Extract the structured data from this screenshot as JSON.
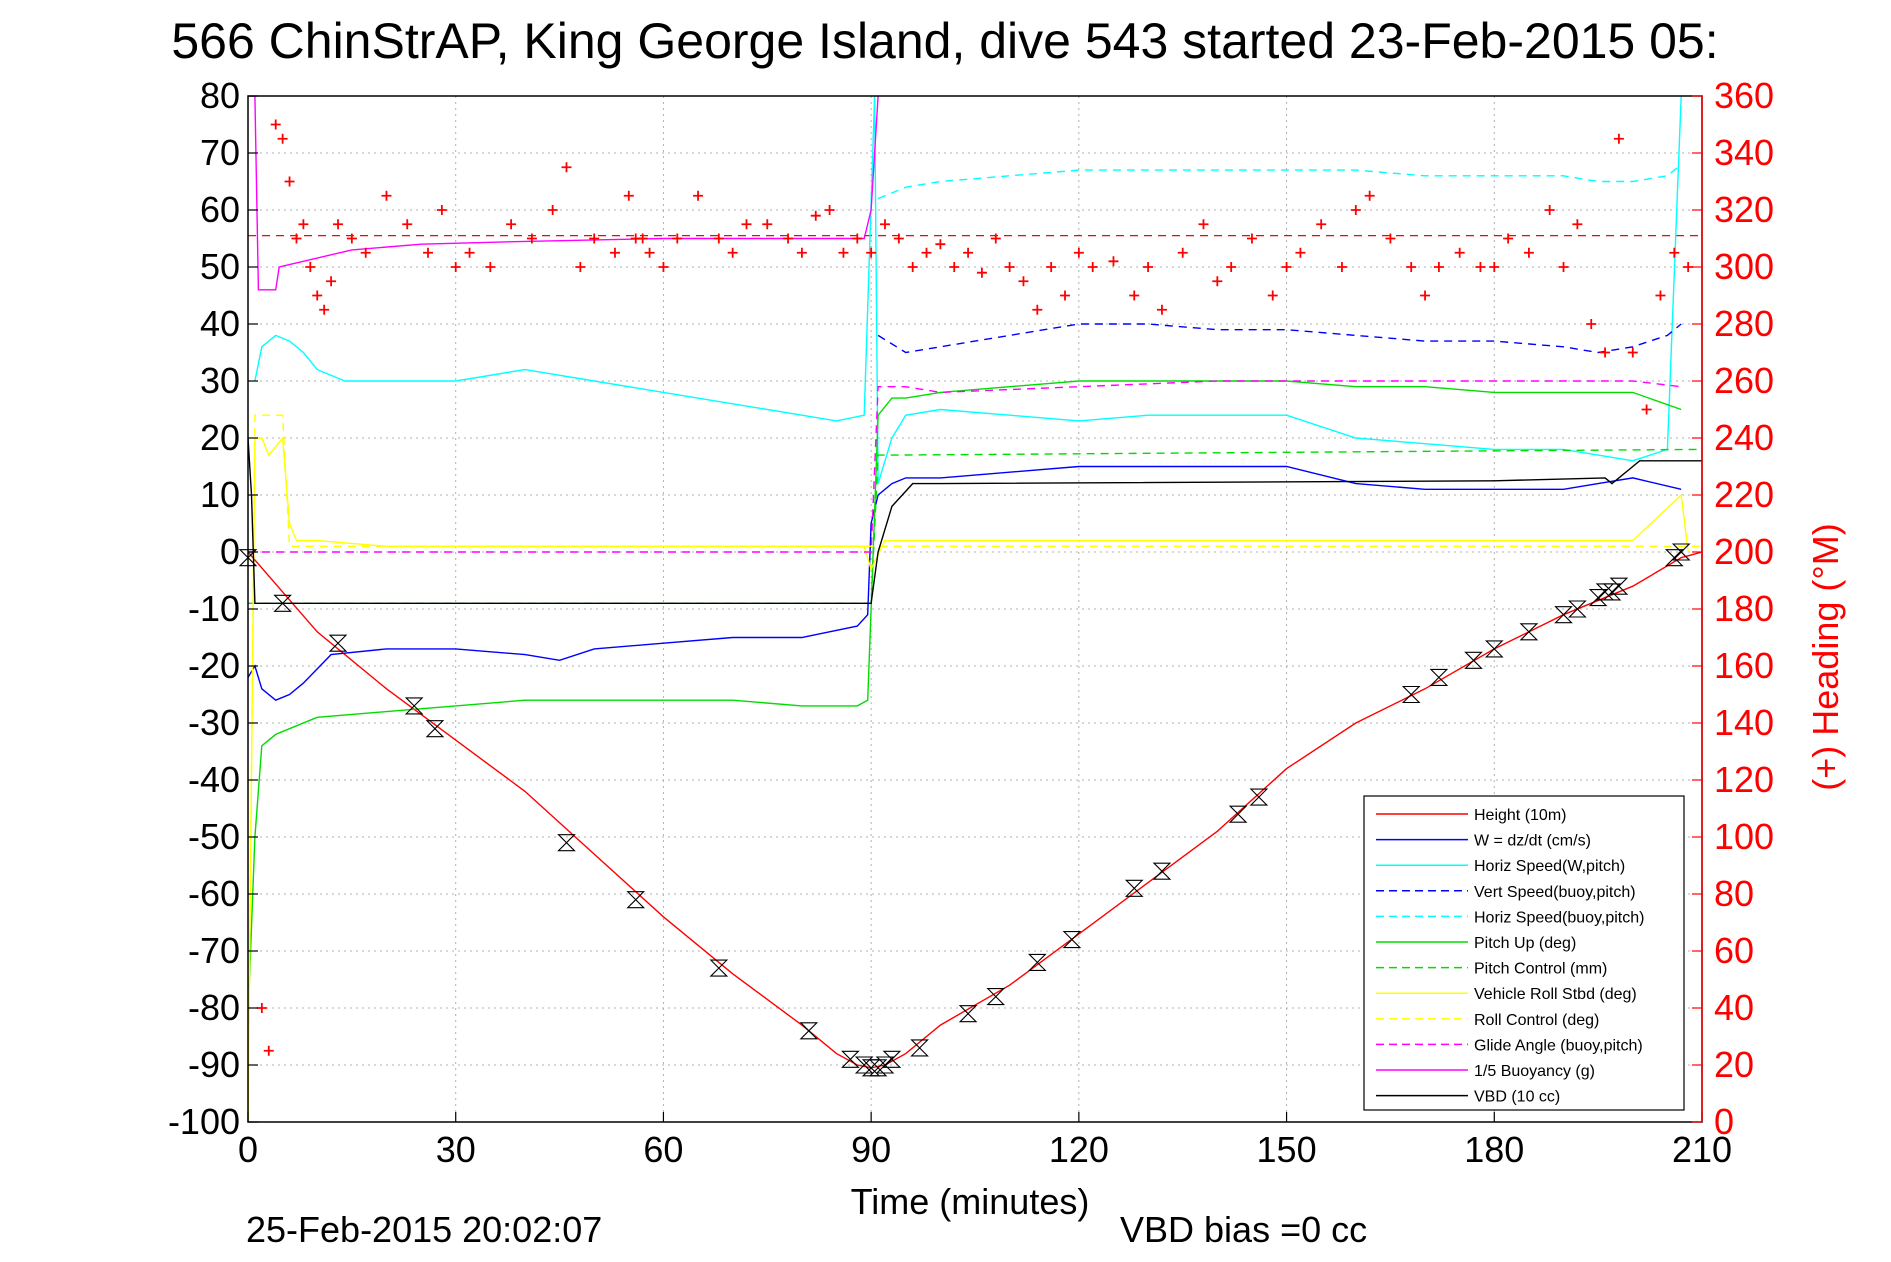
{
  "chart_data": {
    "type": "line",
    "title": "566 ChinStrAP, King George Island, dive 543 started 23-Feb-2015 05:",
    "xlabel": "Time (minutes)",
    "ylabel_right": "(+) Heading (°M)",
    "xlim": [
      0,
      210
    ],
    "ylim": [
      -100,
      80
    ],
    "ylim_right": [
      0,
      360
    ],
    "x_ticks": [
      "0",
      "30",
      "60",
      "90",
      "120",
      "150",
      "180",
      "210"
    ],
    "y_ticks": [
      "80",
      "70",
      "60",
      "50",
      "40",
      "30",
      "20",
      "10",
      "0",
      "-10",
      "-20",
      "-30",
      "-40",
      "-50",
      "-60",
      "-70",
      "-80",
      "-90",
      "-100"
    ],
    "y_ticks_right": [
      "360",
      "340",
      "320",
      "300",
      "280",
      "260",
      "240",
      "220",
      "200",
      "180",
      "160",
      "140",
      "120",
      "100",
      "80",
      "60",
      "40",
      "20",
      "0"
    ],
    "grid": true,
    "legend_position": "bottom-right",
    "timestamp": "25-Feb-2015 20:02:07",
    "vbd_bias": "VBD bias =0 cc",
    "legend": [
      {
        "label": "Height (10m)",
        "color": "#ff0000",
        "dash": "solid"
      },
      {
        "label": "W = dz/dt (cm/s)",
        "color": "#0000ff",
        "dash": "solid"
      },
      {
        "label": "Horiz Speed(W,pitch)",
        "color": "#00ffff",
        "dash": "solid"
      },
      {
        "label": "Vert Speed(buoy,pitch)",
        "color": "#0000ff",
        "dash": "dashed"
      },
      {
        "label": "Horiz Speed(buoy,pitch)",
        "color": "#00ffff",
        "dash": "dashed"
      },
      {
        "label": "Pitch Up (deg)",
        "color": "#00dd00",
        "dash": "solid"
      },
      {
        "label": "Pitch Control (mm)",
        "color": "#00dd00",
        "dash": "dashed"
      },
      {
        "label": "Vehicle Roll Stbd (deg)",
        "color": "#ffff00",
        "dash": "solid"
      },
      {
        "label": "Roll Control (deg)",
        "color": "#ffff00",
        "dash": "dashed"
      },
      {
        "label": "Glide Angle (buoy,pitch)",
        "color": "#ff00ff",
        "dash": "dashed"
      },
      {
        "label": "1/5 Buoyancy (g)",
        "color": "#ff00ff",
        "dash": "solid"
      },
      {
        "label": "VBD (10 cc)",
        "color": "#000000",
        "dash": "solid"
      }
    ],
    "series": [
      {
        "name": "Height (10m)",
        "color": "#ff0000",
        "dash": "solid",
        "x": [
          0,
          5,
          10,
          20,
          30,
          40,
          50,
          60,
          70,
          80,
          85,
          88,
          90,
          92,
          95,
          100,
          110,
          120,
          130,
          140,
          150,
          160,
          170,
          180,
          190,
          200,
          207,
          210
        ],
        "y": [
          0,
          -7,
          -14,
          -24,
          -33,
          -42,
          -53,
          -64,
          -74,
          -83,
          -88,
          -90,
          -90.5,
          -90,
          -88,
          -83,
          -76,
          -67,
          -58,
          -49,
          -38,
          -30,
          -24,
          -17,
          -11,
          -6,
          -1,
          0
        ]
      },
      {
        "name": "W = dz/dt (cm/s)",
        "color": "#0000ff",
        "dash": "solid",
        "x": [
          0,
          1,
          2,
          4,
          6,
          8,
          12,
          20,
          30,
          40,
          45,
          50,
          60,
          70,
          80,
          88,
          89.5,
          90,
          91,
          93,
          95,
          100,
          110,
          120,
          130,
          140,
          150,
          160,
          170,
          180,
          190,
          195,
          200,
          207
        ],
        "y": [
          -22,
          -20,
          -24,
          -26,
          -25,
          -23,
          -18,
          -17,
          -17,
          -18,
          -19,
          -17,
          -16,
          -15,
          -15,
          -13,
          -11,
          5,
          10,
          12,
          13,
          13,
          14,
          15,
          15,
          15,
          15,
          12,
          11,
          11,
          11,
          12,
          13,
          11
        ]
      },
      {
        "name": "Horiz Speed(W,pitch)",
        "color": "#00ffff",
        "dash": "solid",
        "x": [
          1,
          2,
          4,
          6,
          8,
          10,
          14,
          20,
          30,
          40,
          50,
          60,
          70,
          80,
          85,
          89,
          90.5,
          91,
          93,
          95,
          100,
          110,
          120,
          130,
          140,
          150,
          160,
          170,
          180,
          190,
          195,
          200,
          205,
          207
        ],
        "y": [
          30,
          36,
          38,
          37,
          35,
          32,
          30,
          30,
          30,
          32,
          30,
          28,
          26,
          24,
          23,
          24,
          80,
          12,
          20,
          24,
          25,
          24,
          23,
          24,
          24,
          24,
          20,
          19,
          18,
          18,
          17,
          16,
          18,
          80
        ]
      },
      {
        "name": "Vert Speed(buoy,pitch)",
        "color": "#0000ff",
        "dash": "dashed",
        "x": [
          91,
          95,
          100,
          110,
          120,
          130,
          140,
          150,
          160,
          170,
          180,
          190,
          195,
          200,
          205,
          207
        ],
        "y": [
          38,
          35,
          36,
          38,
          40,
          40,
          39,
          39,
          38,
          37,
          37,
          36,
          35,
          36,
          38,
          40
        ]
      },
      {
        "name": "Horiz Speed(buoy,pitch)",
        "color": "#00ffff",
        "dash": "dashed",
        "x": [
          91,
          95,
          100,
          110,
          120,
          130,
          140,
          150,
          160,
          170,
          180,
          190,
          195,
          200,
          205,
          207
        ],
        "y": [
          62,
          64,
          65,
          66,
          67,
          67,
          67,
          67,
          67,
          66,
          66,
          66,
          65,
          65,
          66,
          68
        ]
      },
      {
        "name": "Pitch Up (deg)",
        "color": "#00dd00",
        "dash": "solid",
        "x": [
          0,
          1,
          2,
          4,
          6,
          10,
          20,
          30,
          40,
          50,
          60,
          70,
          80,
          88,
          89.5,
          90,
          91,
          93,
          95,
          100,
          110,
          120,
          130,
          140,
          150,
          160,
          170,
          180,
          190,
          195,
          200,
          207
        ],
        "y": [
          -82,
          -50,
          -34,
          -32,
          -31,
          -29,
          -28,
          -27,
          -26,
          -26,
          -26,
          -26,
          -27,
          -27,
          -26,
          -10,
          24,
          27,
          27,
          28,
          29,
          30,
          30,
          30,
          30,
          29,
          29,
          28,
          28,
          28,
          28,
          25
        ]
      },
      {
        "name": "Pitch Control (mm)",
        "color": "#00dd00",
        "dash": "dashed",
        "x": [
          0,
          2,
          90,
          91,
          93,
          210
        ],
        "y": [
          -9,
          -9,
          -9,
          17,
          17,
          18
        ]
      },
      {
        "name": "Vehicle Roll Stbd (deg)",
        "color": "#ffff00",
        "dash": "solid",
        "x": [
          0,
          1,
          2,
          3,
          5,
          6,
          7,
          8,
          10,
          20,
          40,
          60,
          80,
          89,
          90,
          92,
          94,
          100,
          120,
          140,
          160,
          180,
          190,
          200,
          207,
          208
        ],
        "y": [
          -100,
          20,
          20,
          17,
          20,
          5,
          2,
          2,
          2,
          1,
          1,
          1,
          1,
          1,
          -3,
          2,
          2,
          2,
          2,
          2,
          2,
          2,
          2,
          2,
          10,
          0
        ]
      },
      {
        "name": "Roll Control (deg)",
        "color": "#ffff00",
        "dash": "dashed",
        "x": [
          0,
          1,
          2,
          5,
          6,
          7,
          210
        ],
        "y": [
          -100,
          24,
          24,
          24,
          1,
          1,
          1
        ]
      },
      {
        "name": "Glide Angle (buoy,pitch)",
        "color": "#ff00ff",
        "dash": "dashed",
        "x": [
          0,
          90,
          91,
          95,
          100,
          120,
          140,
          160,
          180,
          200,
          207
        ],
        "y": [
          0,
          0,
          29,
          29,
          28,
          29,
          30,
          30,
          30,
          30,
          29
        ]
      },
      {
        "name": "1/5 Buoyancy (g)",
        "color": "#ff00ff",
        "dash": "solid",
        "x": [
          0,
          1,
          1.5,
          4,
          4.5,
          8,
          15,
          25,
          40,
          60,
          80,
          89,
          90,
          91
        ],
        "y": [
          80,
          80,
          46,
          46,
          50,
          51,
          53,
          54,
          54.5,
          55,
          55,
          55,
          60,
          80
        ]
      },
      {
        "name": "VBD (10 cc)",
        "color": "#000000",
        "dash": "solid",
        "x": [
          0,
          0.5,
          1,
          90,
          91,
          93,
          96,
          100,
          180,
          196,
          197,
          200,
          201,
          210
        ],
        "y": [
          20,
          10,
          -9,
          -9,
          0,
          8,
          12,
          12,
          12.5,
          13,
          12,
          15,
          16,
          16
        ]
      }
    ],
    "heading_series": {
      "name": "(+) Heading",
      "color": "#ff0000",
      "mean_line": 311,
      "x": [
        2,
        3,
        4,
        5,
        6,
        7,
        8,
        9,
        10,
        11,
        12,
        13,
        15,
        17,
        20,
        23,
        26,
        28,
        30,
        32,
        35,
        38,
        41,
        44,
        46,
        48,
        50,
        53,
        55,
        56,
        57,
        58,
        60,
        62,
        65,
        68,
        70,
        72,
        75,
        78,
        80,
        82,
        84,
        86,
        88,
        90,
        92,
        94,
        96,
        98,
        100,
        102,
        104,
        106,
        108,
        110,
        112,
        114,
        116,
        118,
        120,
        122,
        125,
        128,
        130,
        132,
        135,
        138,
        140,
        142,
        145,
        148,
        150,
        152,
        155,
        158,
        160,
        162,
        165,
        168,
        170,
        172,
        175,
        178,
        180,
        182,
        185,
        188,
        190,
        192,
        194,
        196,
        198,
        200,
        202,
        204,
        206,
        208
      ],
      "y": [
        40,
        25,
        350,
        345,
        330,
        310,
        315,
        300,
        290,
        285,
        295,
        315,
        310,
        305,
        325,
        315,
        305,
        320,
        300,
        305,
        300,
        315,
        310,
        320,
        335,
        300,
        310,
        305,
        325,
        310,
        310,
        305,
        300,
        310,
        325,
        310,
        305,
        315,
        315,
        310,
        305,
        318,
        320,
        305,
        310,
        305,
        315,
        310,
        300,
        305,
        308,
        300,
        305,
        298,
        310,
        300,
        295,
        285,
        300,
        290,
        305,
        300,
        302,
        290,
        300,
        285,
        305,
        315,
        295,
        300,
        310,
        290,
        300,
        305,
        315,
        300,
        320,
        325,
        310,
        300,
        290,
        300,
        305,
        300,
        300,
        310,
        305,
        320,
        300,
        315,
        280,
        270,
        345,
        270,
        250,
        290,
        305,
        300
      ]
    },
    "marker_points": {
      "label": "Height markers",
      "x": [
        0,
        5,
        13,
        24,
        27,
        46,
        56,
        68,
        81,
        87,
        89,
        90,
        91,
        92,
        93,
        97,
        104,
        108,
        114,
        119,
        128,
        132,
        143,
        146,
        168,
        172,
        177,
        180,
        185,
        190,
        192,
        195,
        196,
        197,
        198,
        206,
        207
      ],
      "y": [
        -1,
        -9,
        -16,
        -27,
        -31,
        -51,
        -61,
        -73,
        -84,
        -89,
        -90,
        -90.5,
        -90.5,
        -90,
        -89,
        -87,
        -81,
        -78,
        -72,
        -68,
        -59,
        -56,
        -46,
        -43,
        -25,
        -22,
        -19,
        -17,
        -14,
        -11,
        -10,
        -8,
        -7,
        -7,
        -6,
        -1,
        0
      ]
    }
  }
}
